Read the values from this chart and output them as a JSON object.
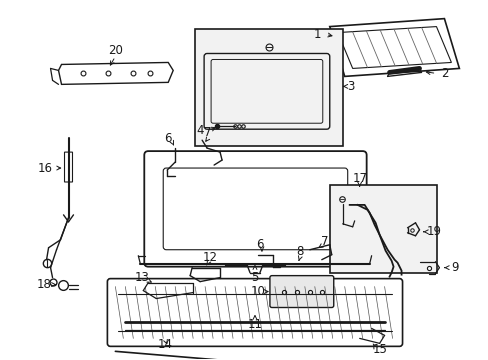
{
  "bg_color": "#ffffff",
  "line_color": "#1a1a1a",
  "fig_width": 4.89,
  "fig_height": 3.6,
  "dpi": 100,
  "label_fontsize": 8.5,
  "arrow_lw": 0.7
}
